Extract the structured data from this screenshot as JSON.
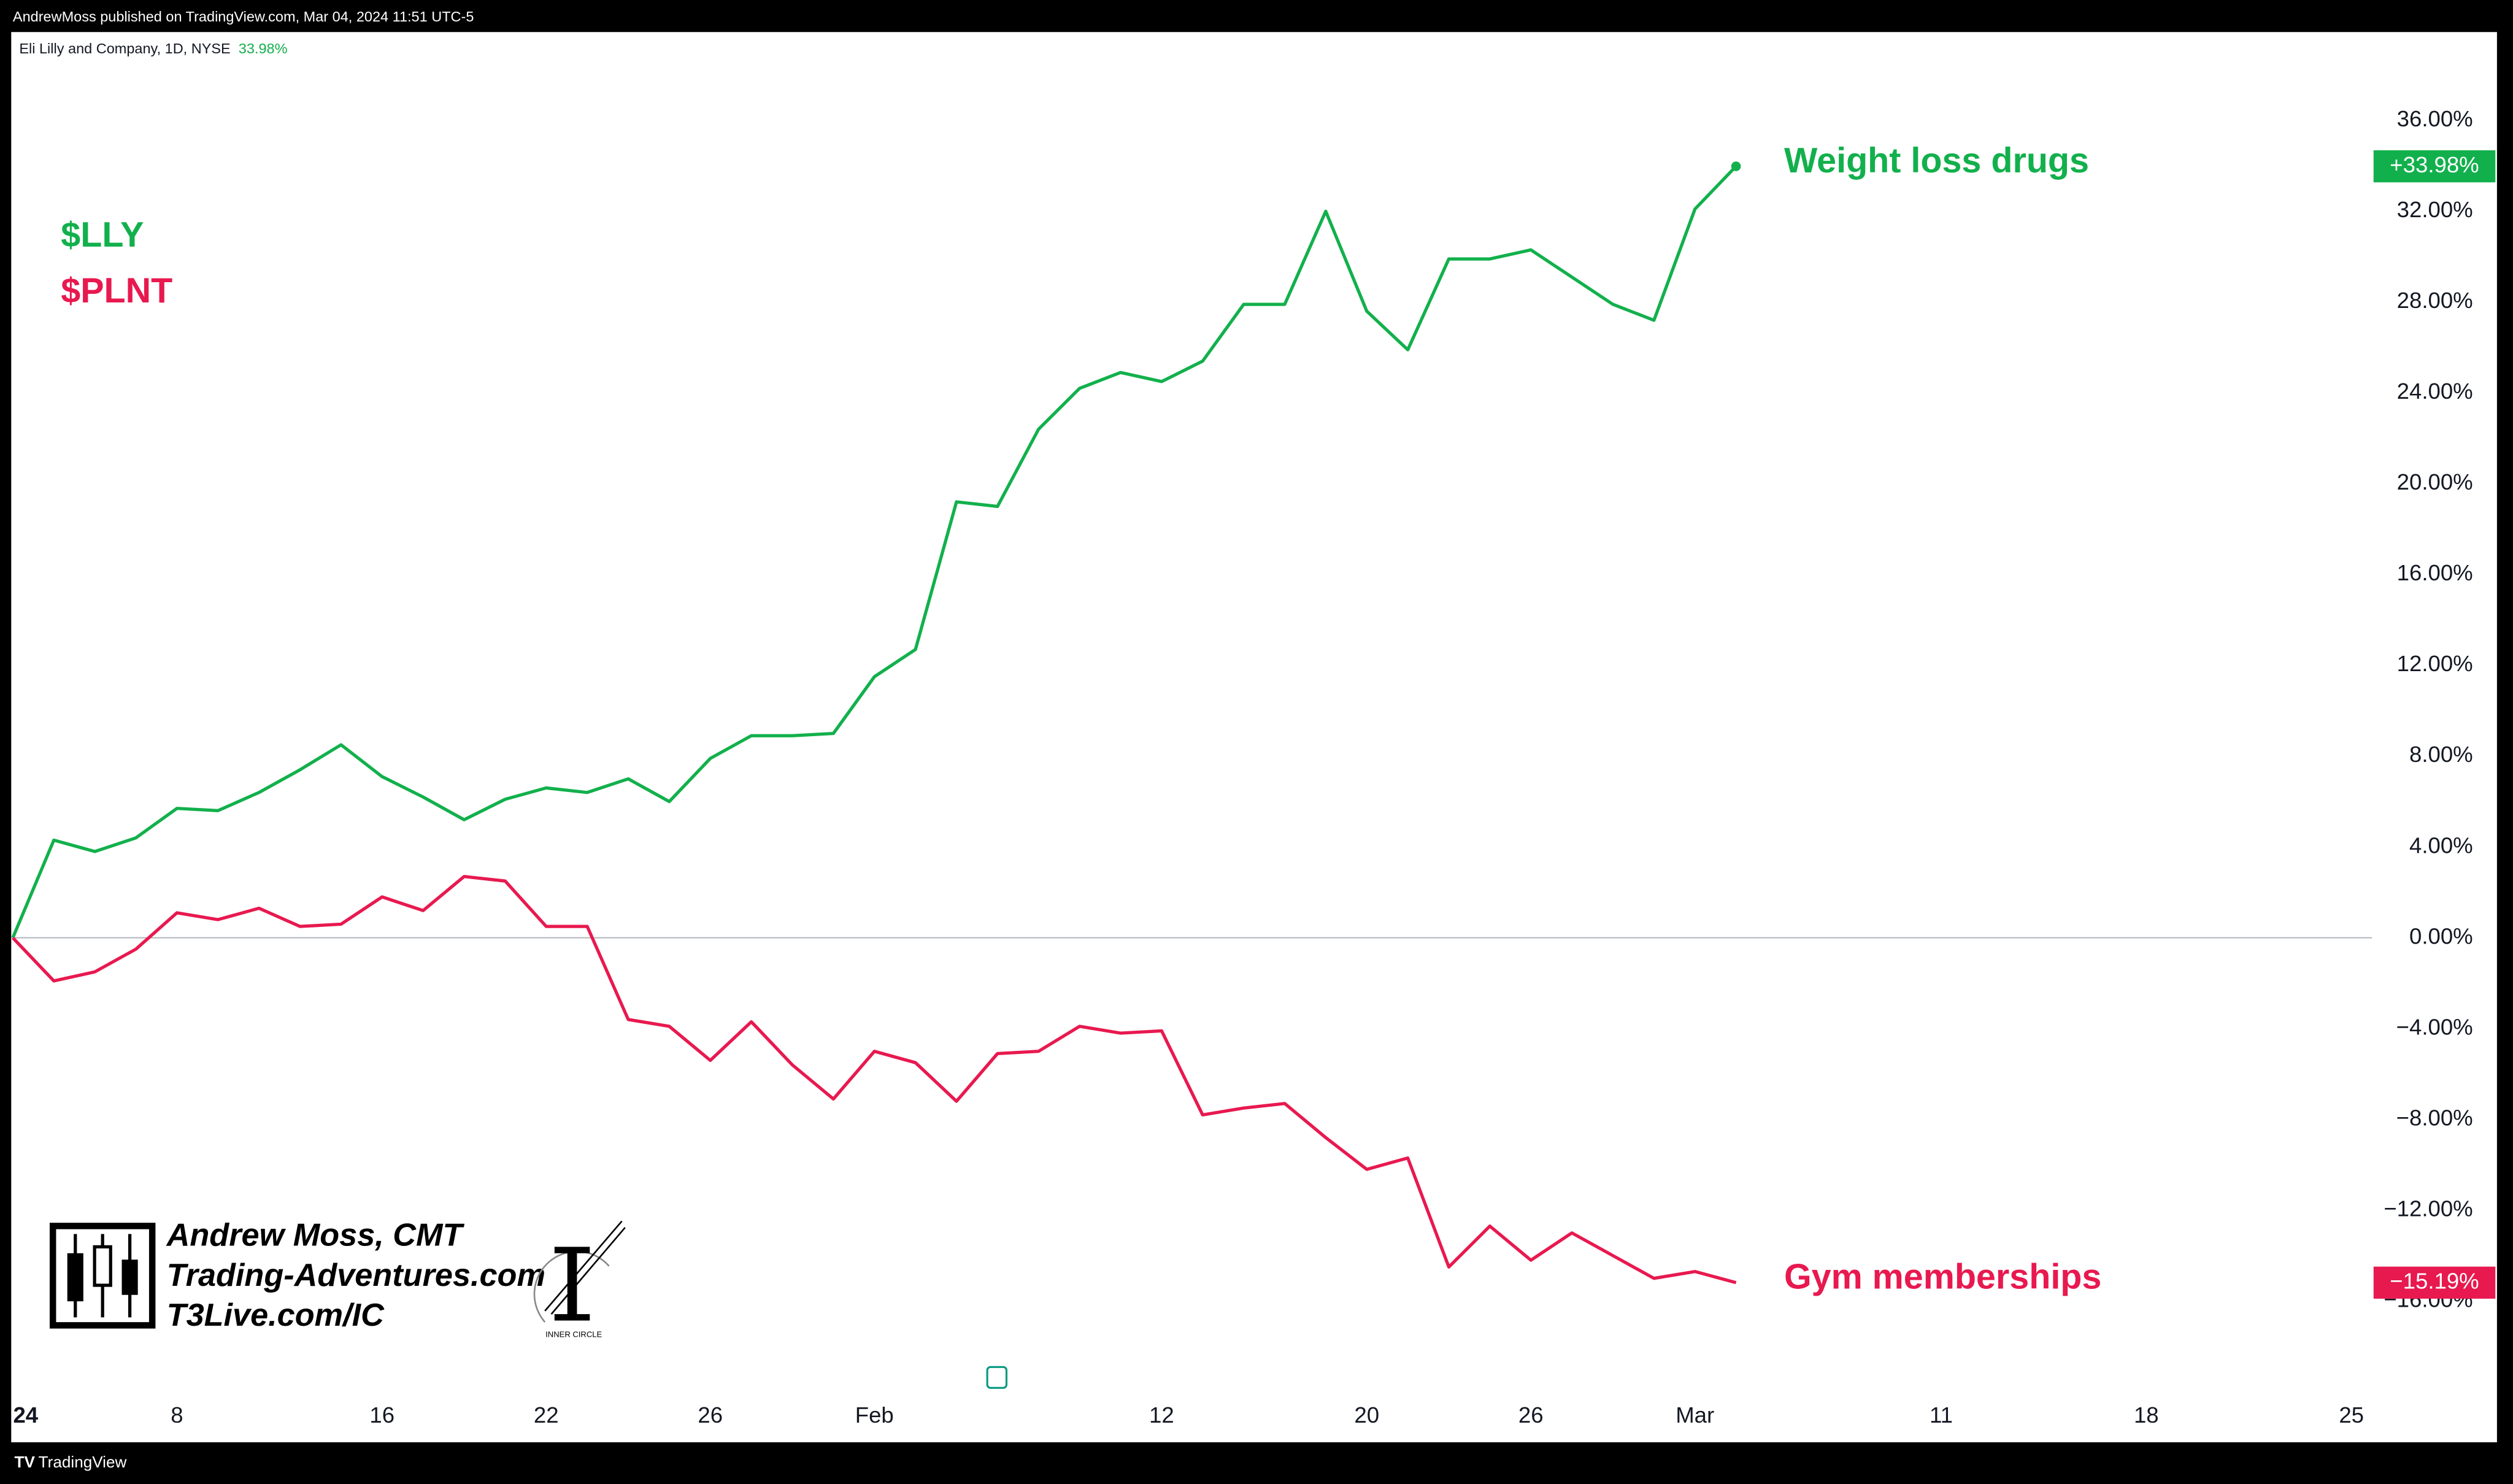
{
  "header": {
    "publisher": "AndrewMoss published on TradingView.com, Mar 04, 2024 11:51 UTC-5",
    "footer": "TradingView"
  },
  "watermark": {
    "lines": [
      "Andrew Moss, CMT",
      "Trading-Adventures.com",
      "T3Live.com/IC"
    ],
    "badge": "INNER CIRCLE"
  },
  "chart_data": {
    "type": "line",
    "symbol_title": "Eli Lilly and Company, 1D, NYSE",
    "symbol_change": "33.98%",
    "xlim": [
      0,
      57.5
    ],
    "ylim": [
      -20,
      40
    ],
    "xticks": [
      {
        "value": 0,
        "label": "24"
      },
      {
        "value": 4,
        "label": "8"
      },
      {
        "value": 9,
        "label": "16"
      },
      {
        "value": 13,
        "label": "22"
      },
      {
        "value": 17,
        "label": "26"
      },
      {
        "value": 21,
        "label": "Feb"
      },
      {
        "value": 28,
        "label": "12"
      },
      {
        "value": 33,
        "label": "20"
      },
      {
        "value": 37,
        "label": "26"
      },
      {
        "value": 41,
        "label": "Mar"
      },
      {
        "value": 47,
        "label": "11"
      },
      {
        "value": 52,
        "label": "18"
      },
      {
        "value": 57,
        "label": "25"
      }
    ],
    "yticks": [
      {
        "value": 36,
        "label": "36.00%"
      },
      {
        "value": 32,
        "label": "32.00%"
      },
      {
        "value": 28,
        "label": "28.00%"
      },
      {
        "value": 24,
        "label": "24.00%"
      },
      {
        "value": 20,
        "label": "20.00%"
      },
      {
        "value": 16,
        "label": "16.00%"
      },
      {
        "value": 12,
        "label": "12.00%"
      },
      {
        "value": 8,
        "label": "8.00%"
      },
      {
        "value": 4,
        "label": "4.00%"
      },
      {
        "value": 0,
        "label": "0.00%"
      },
      {
        "value": -4,
        "label": "−4.00%"
      },
      {
        "value": -8,
        "label": "−8.00%"
      },
      {
        "value": -12,
        "label": "−12.00%"
      },
      {
        "value": -16,
        "label": "−16.00%"
      }
    ],
    "series": [
      {
        "name": "$LLY",
        "color": "#12b04c",
        "annotation": "Weight loss drugs",
        "values": [
          0,
          4.3,
          3.8,
          4.4,
          5.7,
          5.6,
          6.4,
          7.4,
          8.5,
          7.1,
          6.2,
          5.2,
          6.1,
          6.6,
          6.4,
          7.0,
          6.0,
          7.9,
          8.9,
          8.9,
          9.0,
          11.5,
          12.7,
          19.2,
          19.0,
          22.4,
          24.2,
          24.9,
          24.5,
          25.4,
          27.9,
          27.9,
          32.0,
          27.6,
          25.9,
          29.9,
          29.9,
          30.3,
          29.1,
          27.9,
          27.2,
          32.1,
          33.98
        ],
        "value_labels": [
          null,
          null,
          null,
          null,
          null,
          null,
          null,
          null,
          null,
          null,
          null,
          null,
          null,
          null,
          null,
          null,
          null,
          null,
          null,
          null,
          null,
          null,
          null,
          null,
          null,
          null,
          null,
          null,
          null,
          null,
          null,
          null,
          null,
          null,
          null,
          null,
          null,
          null,
          null,
          null,
          null,
          null,
          "+33.98%"
        ]
      },
      {
        "name": "$PLNT",
        "color": "#e8194f",
        "annotation": "Gym  memberships",
        "values": [
          0,
          -1.9,
          -1.5,
          -0.5,
          1.1,
          0.8,
          1.3,
          0.5,
          0.6,
          1.8,
          1.2,
          2.7,
          2.5,
          0.5,
          0.5,
          -3.6,
          -3.9,
          -5.4,
          -3.7,
          -5.6,
          -7.1,
          -5.0,
          -5.5,
          -7.2,
          -5.1,
          -5.0,
          -3.9,
          -4.2,
          -4.1,
          -7.8,
          -7.5,
          -7.3,
          -8.8,
          -10.2,
          -9.7,
          -14.5,
          -12.7,
          -14.2,
          -13.0,
          -14.0,
          -15.0,
          -14.7,
          -15.19
        ],
        "value_labels": [
          null,
          null,
          null,
          null,
          null,
          null,
          null,
          null,
          null,
          null,
          null,
          null,
          null,
          null,
          null,
          null,
          null,
          null,
          null,
          null,
          null,
          null,
          null,
          null,
          null,
          null,
          null,
          null,
          null,
          null,
          null,
          null,
          null,
          null,
          null,
          null,
          null,
          null,
          null,
          null,
          null,
          null,
          "−15.19%"
        ]
      }
    ]
  }
}
